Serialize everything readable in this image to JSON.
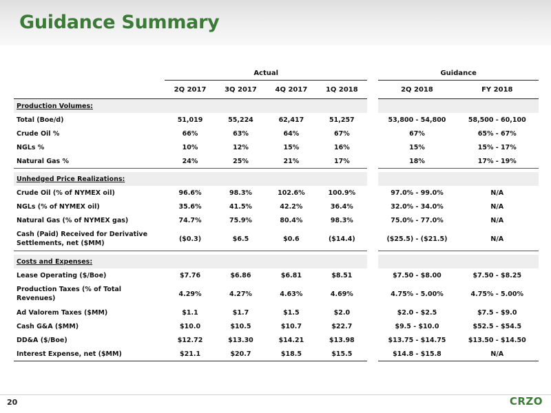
{
  "title": "Guidance Summary",
  "page_number": "20",
  "logo_text": "CRZO",
  "accent_color": "#3c7a37",
  "groups": {
    "actual": "Actual",
    "guidance": "Guidance"
  },
  "columns": [
    "2Q 2017",
    "3Q 2017",
    "4Q 2017",
    "1Q 2018",
    "2Q 2018",
    "FY 2018"
  ],
  "sections": [
    {
      "title": "Production Volumes:",
      "rows": [
        {
          "label": "Total (Boe/d)",
          "values": [
            "51,019",
            "55,224",
            "62,417",
            "51,257",
            "53,800 - 54,800",
            "58,500 - 60,100"
          ]
        },
        {
          "label": "Crude Oil %",
          "values": [
            "66%",
            "63%",
            "64%",
            "67%",
            "67%",
            "65% - 67%"
          ]
        },
        {
          "label": "NGLs %",
          "values": [
            "10%",
            "12%",
            "15%",
            "16%",
            "15%",
            "15% - 17%"
          ]
        },
        {
          "label": "Natural Gas %",
          "values": [
            "24%",
            "25%",
            "21%",
            "17%",
            "18%",
            "17% - 19%"
          ]
        }
      ]
    },
    {
      "title": "Unhedged Price Realizations:",
      "rows": [
        {
          "label": "Crude Oil (% of NYMEX oil)",
          "values": [
            "96.6%",
            "98.3%",
            "102.6%",
            "100.9%",
            "97.0% - 99.0%",
            "N/A"
          ]
        },
        {
          "label": "NGLs (% of NYMEX oil)",
          "values": [
            "35.6%",
            "41.5%",
            "42.2%",
            "36.4%",
            "32.0% - 34.0%",
            "N/A"
          ]
        },
        {
          "label": "Natural Gas (% of NYMEX gas)",
          "values": [
            "74.7%",
            "75.9%",
            "80.4%",
            "98.3%",
            "75.0% - 77.0%",
            "N/A"
          ]
        },
        {
          "label": "Cash (Paid) Received for Derivative Settlements, net ($MM)",
          "values": [
            "($0.3)",
            "$6.5",
            "$0.6",
            "($14.4)",
            "($25.5) - ($21.5)",
            "N/A"
          ]
        }
      ]
    },
    {
      "title": "Costs and Expenses:",
      "rows": [
        {
          "label": "Lease Operating ($/Boe)",
          "values": [
            "$7.76",
            "$6.86",
            "$6.81",
            "$8.51",
            "$7.50 - $8.00",
            "$7.50 - $8.25"
          ]
        },
        {
          "label": "Production Taxes (% of Total Revenues)",
          "values": [
            "4.29%",
            "4.27%",
            "4.63%",
            "4.69%",
            "4.75% - 5.00%",
            "4.75% - 5.00%"
          ]
        },
        {
          "label": "Ad Valorem Taxes ($MM)",
          "values": [
            "$1.1",
            "$1.7",
            "$1.5",
            "$2.0",
            "$2.0 - $2.5",
            "$7.5 - $9.0"
          ]
        },
        {
          "label": "Cash G&A ($MM)",
          "values": [
            "$10.0",
            "$10.5",
            "$10.7",
            "$22.7",
            "$9.5 - $10.0",
            "$52.5 - $54.5"
          ]
        },
        {
          "label": "DD&A ($/Boe)",
          "values": [
            "$12.72",
            "$13.30",
            "$14.21",
            "$13.98",
            "$13.75 - $14.75",
            "$13.50 - $14.50"
          ]
        },
        {
          "label": "Interest Expense, net ($MM)",
          "values": [
            "$21.1",
            "$20.7",
            "$18.5",
            "$15.5",
            "$14.8 - $15.8",
            "N/A"
          ]
        }
      ]
    }
  ]
}
